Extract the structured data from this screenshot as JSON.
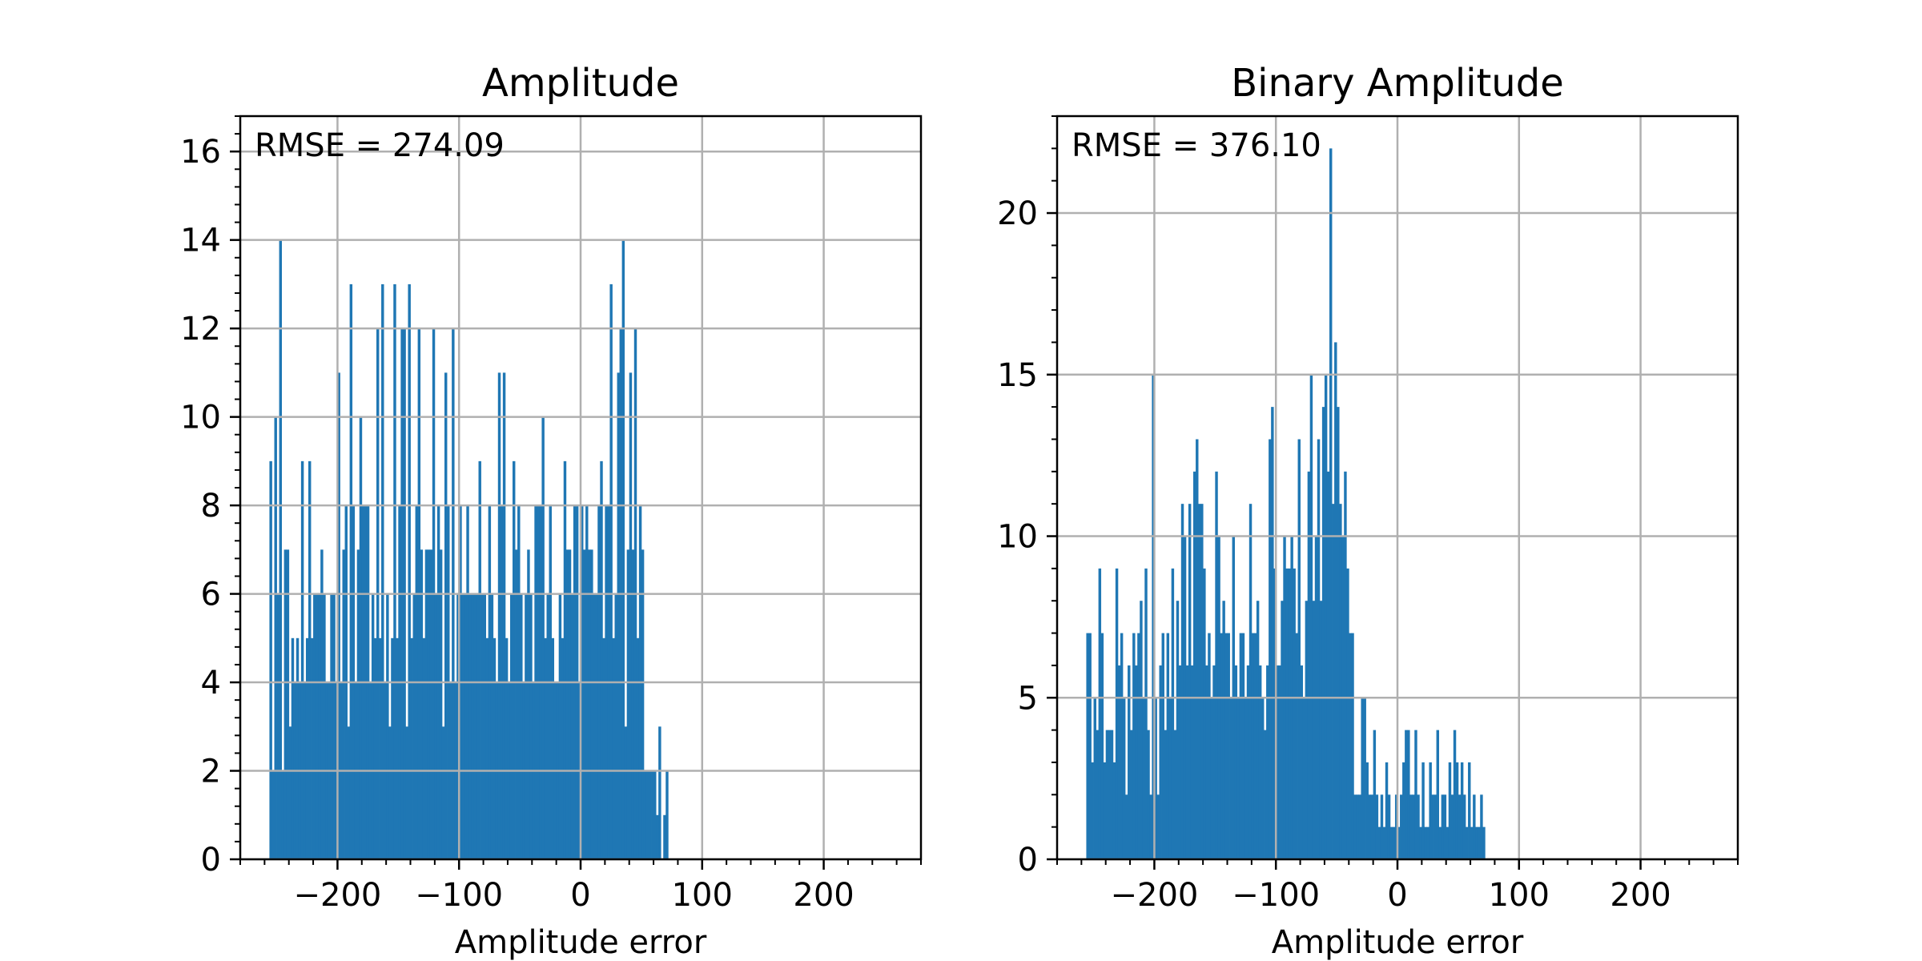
{
  "colors": {
    "bar": "#1f77b4",
    "grid": "#b0b0b0",
    "axis": "#000000"
  },
  "chart_data": [
    {
      "type": "bar",
      "title": "Amplitude",
      "xlabel": "Amplitude error",
      "ylabel": "",
      "annotation": "RMSE = 274.09",
      "grid": true,
      "xlim": [
        -280,
        280
      ],
      "ylim": [
        0,
        16.8
      ],
      "xticks": [
        -200,
        -100,
        0,
        100,
        200
      ],
      "yticks": [
        0,
        2,
        4,
        6,
        8,
        10,
        12,
        14,
        16
      ],
      "xtick_labels": [
        "−200",
        "−100",
        "0",
        "100",
        "200"
      ],
      "ytick_labels": [
        "0",
        "2",
        "4",
        "6",
        "8",
        "10",
        "12",
        "14",
        "16"
      ],
      "bin_start": -256,
      "bin_width": 2,
      "values": [
        9,
        2,
        10,
        6,
        14,
        2,
        7,
        7,
        3,
        5,
        4,
        5,
        4,
        9,
        4,
        5,
        9,
        5,
        6,
        6,
        6,
        7,
        6,
        4,
        4,
        6,
        6,
        4,
        11,
        4,
        7,
        8,
        3,
        13,
        8,
        4,
        7,
        10,
        8,
        8,
        8,
        4,
        6,
        5,
        12,
        5,
        13,
        4,
        6,
        3,
        5,
        13,
        5,
        8,
        12,
        12,
        3,
        13,
        5,
        6,
        8,
        12,
        7,
        5,
        7,
        7,
        7,
        12,
        6,
        8,
        7,
        3,
        11,
        8,
        4,
        12,
        4,
        6,
        8,
        6,
        6,
        8,
        6,
        6,
        6,
        6,
        9,
        6,
        6,
        5,
        8,
        6,
        5,
        4,
        11,
        8,
        11,
        5,
        4,
        6,
        9,
        7,
        8,
        6,
        4,
        6,
        7,
        6,
        4,
        8,
        8,
        8,
        10,
        5,
        6,
        8,
        5,
        4,
        4,
        6,
        5,
        9,
        7,
        7,
        6,
        8,
        8,
        4,
        8,
        7,
        8,
        7,
        7,
        6,
        6,
        8,
        9,
        5,
        8,
        8,
        13,
        5,
        6,
        11,
        12,
        14,
        3,
        7,
        11,
        7,
        12,
        5,
        8,
        7,
        2,
        2,
        2,
        2,
        2,
        1,
        3,
        0,
        1,
        2
      ]
    },
    {
      "type": "bar",
      "title": "Binary Amplitude",
      "xlabel": "Amplitude error",
      "ylabel": "",
      "annotation": "RMSE = 376.10",
      "grid": true,
      "xlim": [
        -280,
        280
      ],
      "ylim": [
        0,
        23
      ],
      "xticks": [
        -200,
        -100,
        0,
        100,
        200
      ],
      "yticks": [
        0,
        5,
        10,
        15,
        20
      ],
      "xtick_labels": [
        "−200",
        "−100",
        "0",
        "100",
        "200"
      ],
      "ytick_labels": [
        "0",
        "5",
        "10",
        "15",
        "20"
      ],
      "bin_start": -256,
      "bin_width": 2,
      "values": [
        7,
        7,
        3,
        5,
        4,
        9,
        7,
        3,
        4,
        4,
        4,
        3,
        9,
        6,
        7,
        5,
        2,
        6,
        4,
        7,
        6,
        7,
        8,
        5,
        9,
        4,
        2,
        15,
        5,
        2,
        6,
        7,
        4,
        7,
        5,
        9,
        4,
        8,
        6,
        11,
        10,
        6,
        11,
        6,
        12,
        13,
        11,
        11,
        9,
        6,
        7,
        5,
        6,
        12,
        10,
        7,
        8,
        7,
        7,
        5,
        10,
        6,
        5,
        7,
        7,
        5,
        6,
        11,
        7,
        7,
        8,
        6,
        5,
        4,
        6,
        13,
        14,
        9,
        6,
        6,
        8,
        10,
        9,
        9,
        10,
        9,
        7,
        13,
        6,
        5,
        8,
        12,
        15,
        8,
        10,
        13,
        8,
        14,
        15,
        12,
        22,
        11,
        16,
        14,
        11,
        10,
        12,
        9,
        7,
        7,
        2,
        2,
        2,
        5,
        5,
        3,
        2,
        2,
        4,
        2,
        1,
        2,
        1,
        3,
        2,
        1,
        1,
        2,
        1,
        2,
        3,
        4,
        4,
        2,
        2,
        4,
        2,
        1,
        3,
        1,
        1,
        3,
        2,
        2,
        4,
        1,
        2,
        2,
        1,
        3,
        2,
        4,
        3,
        2,
        3,
        2,
        1,
        3,
        1,
        2,
        1,
        1,
        2,
        1
      ]
    }
  ]
}
